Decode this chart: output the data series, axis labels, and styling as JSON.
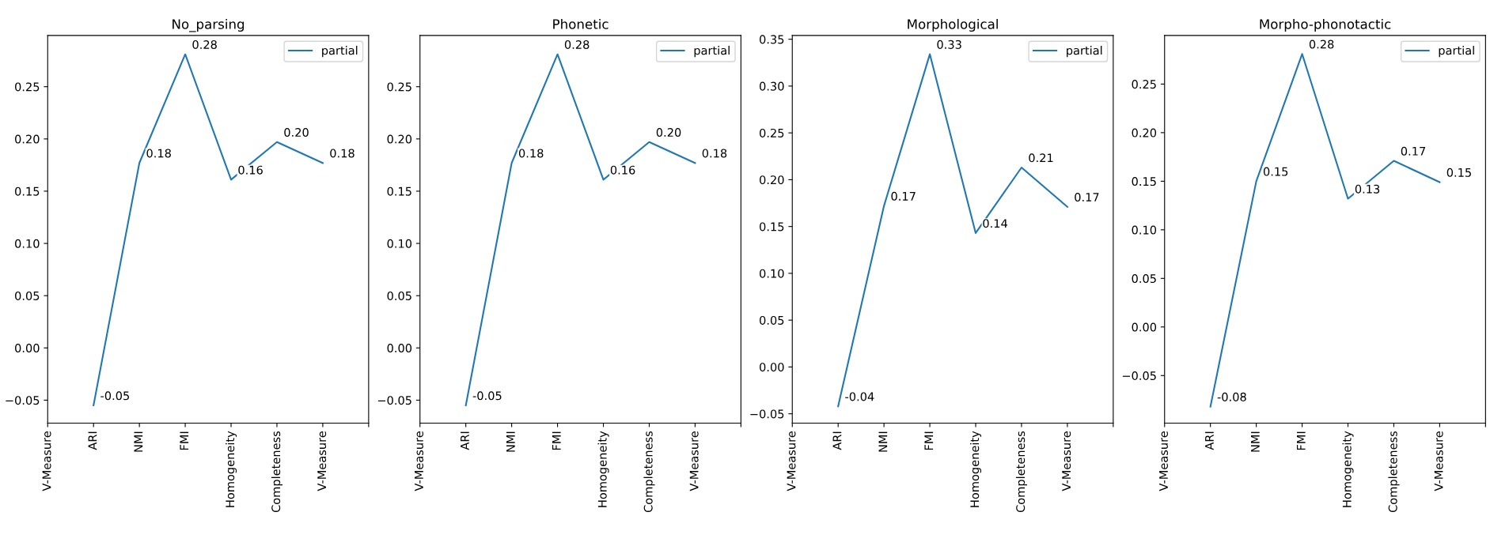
{
  "chart_data": [
    {
      "type": "line",
      "title": "No_parsing",
      "categories": [
        "V-Measure",
        "ARI",
        "NMI",
        "FMI",
        "Homogeneity",
        "Completeness",
        "V-Measure",
        null
      ],
      "series": [
        {
          "name": "partial",
          "color": "#1f77b4",
          "values": [
            null,
            -0.055,
            0.177,
            0.281,
            0.161,
            0.197,
            0.177,
            null
          ],
          "value_labels": [
            null,
            "-0.05",
            "0.18",
            "0.28",
            "0.16",
            "0.20",
            "0.18",
            null
          ]
        }
      ],
      "ylim": [
        -0.072,
        0.299
      ],
      "yticks": [
        {
          "value": -0.05,
          "label": "−0.05"
        },
        {
          "value": 0,
          "label": "0.00"
        },
        0.05,
        {
          "value": 0.1,
          "label": "0.10"
        },
        0.15,
        {
          "value": 0.2,
          "label": "0.20"
        },
        0.25
      ],
      "legend": "top right"
    },
    {
      "type": "line",
      "title": "Phonetic",
      "categories": [
        "V-Measure",
        "ARI",
        "NMI",
        "FMI",
        "Homogeneity",
        "Completeness",
        "V-Measure",
        null
      ],
      "series": [
        {
          "name": "partial",
          "color": "#1f77b4",
          "values": [
            null,
            -0.055,
            0.177,
            0.281,
            0.161,
            0.197,
            0.177,
            null
          ],
          "value_labels": [
            null,
            "-0.05",
            "0.18",
            "0.28",
            "0.16",
            "0.20",
            "0.18",
            null
          ]
        }
      ],
      "ylim": [
        -0.072,
        0.299
      ],
      "yticks": [
        {
          "value": -0.05,
          "label": "−0.05"
        },
        {
          "value": 0,
          "label": "0.00"
        },
        0.05,
        {
          "value": 0.1,
          "label": "0.10"
        },
        0.15,
        {
          "value": 0.2,
          "label": "0.20"
        },
        0.25
      ],
      "legend": "top right"
    },
    {
      "type": "line",
      "title": "Morphological",
      "categories": [
        "V-Measure",
        "ARI",
        "NMI",
        "FMI",
        "Homogeneity",
        "Completeness",
        "V-Measure",
        null
      ],
      "series": [
        {
          "name": "partial",
          "color": "#1f77b4",
          "values": [
            null,
            -0.042,
            0.172,
            0.334,
            0.143,
            0.213,
            0.171,
            null
          ],
          "value_labels": [
            null,
            "-0.04",
            "0.17",
            "0.33",
            "0.14",
            "0.21",
            "0.17",
            null
          ]
        }
      ],
      "ylim": [
        -0.06,
        0.354
      ],
      "yticks": [
        {
          "value": -0.05,
          "label": "−0.05"
        },
        {
          "value": 0,
          "label": "0.00"
        },
        0.05,
        {
          "value": 0.1,
          "label": "0.10"
        },
        0.15,
        {
          "value": 0.2,
          "label": "0.20"
        },
        0.25,
        {
          "value": 0.3,
          "label": "0.30"
        },
        0.35
      ],
      "legend": "top right"
    },
    {
      "type": "line",
      "title": "Morpho-phonotactic",
      "categories": [
        "V-Measure",
        "ARI",
        "NMI",
        "FMI",
        "Homogeneity",
        "Completeness",
        "V-Measure",
        null
      ],
      "series": [
        {
          "name": "partial",
          "color": "#1f77b4",
          "values": [
            null,
            -0.082,
            0.15,
            0.281,
            0.132,
            0.171,
            0.149,
            null
          ],
          "value_labels": [
            null,
            "-0.08",
            "0.15",
            "0.28",
            "0.13",
            "0.17",
            "0.15",
            null
          ]
        }
      ],
      "ylim": [
        -0.099,
        0.3
      ],
      "yticks": [
        {
          "value": -0.05,
          "label": "−0.05"
        },
        {
          "value": 0,
          "label": "0.00"
        },
        0.05,
        {
          "value": 0.1,
          "label": "0.10"
        },
        0.15,
        {
          "value": 0.2,
          "label": "0.20"
        },
        0.25
      ],
      "legend": "top right"
    }
  ]
}
